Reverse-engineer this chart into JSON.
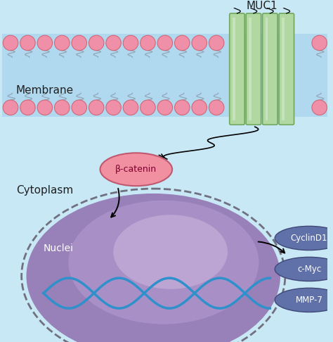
{
  "bg_color": "#c8e8f5",
  "membrane_color": "#b0d8ee",
  "pink_ball_color": "#f090a8",
  "pink_ball_edge": "#d06878",
  "tail_color": "#90a8b8",
  "muc1_green_color": "#b0d8a0",
  "muc1_green_edge": "#70a860",
  "nucleus_color_outer": "#9880b8",
  "nucleus_color_mid": "#b098cc",
  "nucleus_color_inner": "#d0b8e0",
  "nucleus_edge_color": "#707080",
  "beta_catenin_color": "#f090a0",
  "beta_catenin_edge": "#c05870",
  "beta_catenin_text": "#800030",
  "dna_color": "#3090cc",
  "gene_oval_color": "#6070a8",
  "gene_oval_edge": "#404878",
  "gene_oval_text_color": "white",
  "arrow_color": "black",
  "text_color": "#202020",
  "membrane_label": "Membrane",
  "cytoplasm_label": "Cytoplasm",
  "nuclei_label": "Nuclei",
  "muc1_label": "MUC1",
  "beta_catenin_label": "β-catenin",
  "gene_labels": [
    "CyclinD1",
    "c-Myc",
    "MMP-7"
  ]
}
